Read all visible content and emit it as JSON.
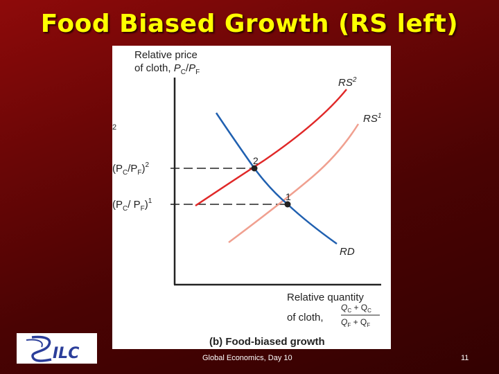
{
  "slide": {
    "title": "Food Biased Growth (RS left)",
    "footer": "Global Economics, Day 10",
    "page_number": "11"
  },
  "diagram": {
    "y_axis_label_line1": "Relative price",
    "y_axis_label_line2_prefix": "of cloth, ",
    "y_axis_label_var": "P",
    "y_axis_label_sub_num": "C",
    "y_axis_label_sub_den": "F",
    "x_axis_label_line1": "Relative quantity",
    "x_axis_label_line2": "of cloth,",
    "x_fraction_num": "Q",
    "x_fraction_den": "Q",
    "rs2_label": "RS",
    "rs2_sup": "2",
    "rs1_label": "RS",
    "rs1_sup": "1",
    "rd_label": "RD",
    "point2_label": "2",
    "point1_label": "1",
    "price2_label": "(P",
    "price2_sup": "2",
    "price1_label": "(P",
    "price1_sup": "1",
    "stray_mark": "2",
    "caption": "(b) Food-biased growth",
    "colors": {
      "rs2": "#e02828",
      "rs1": "#f0a090",
      "rd": "#2060b0"
    }
  },
  "logo": {
    "text": "ILC"
  }
}
